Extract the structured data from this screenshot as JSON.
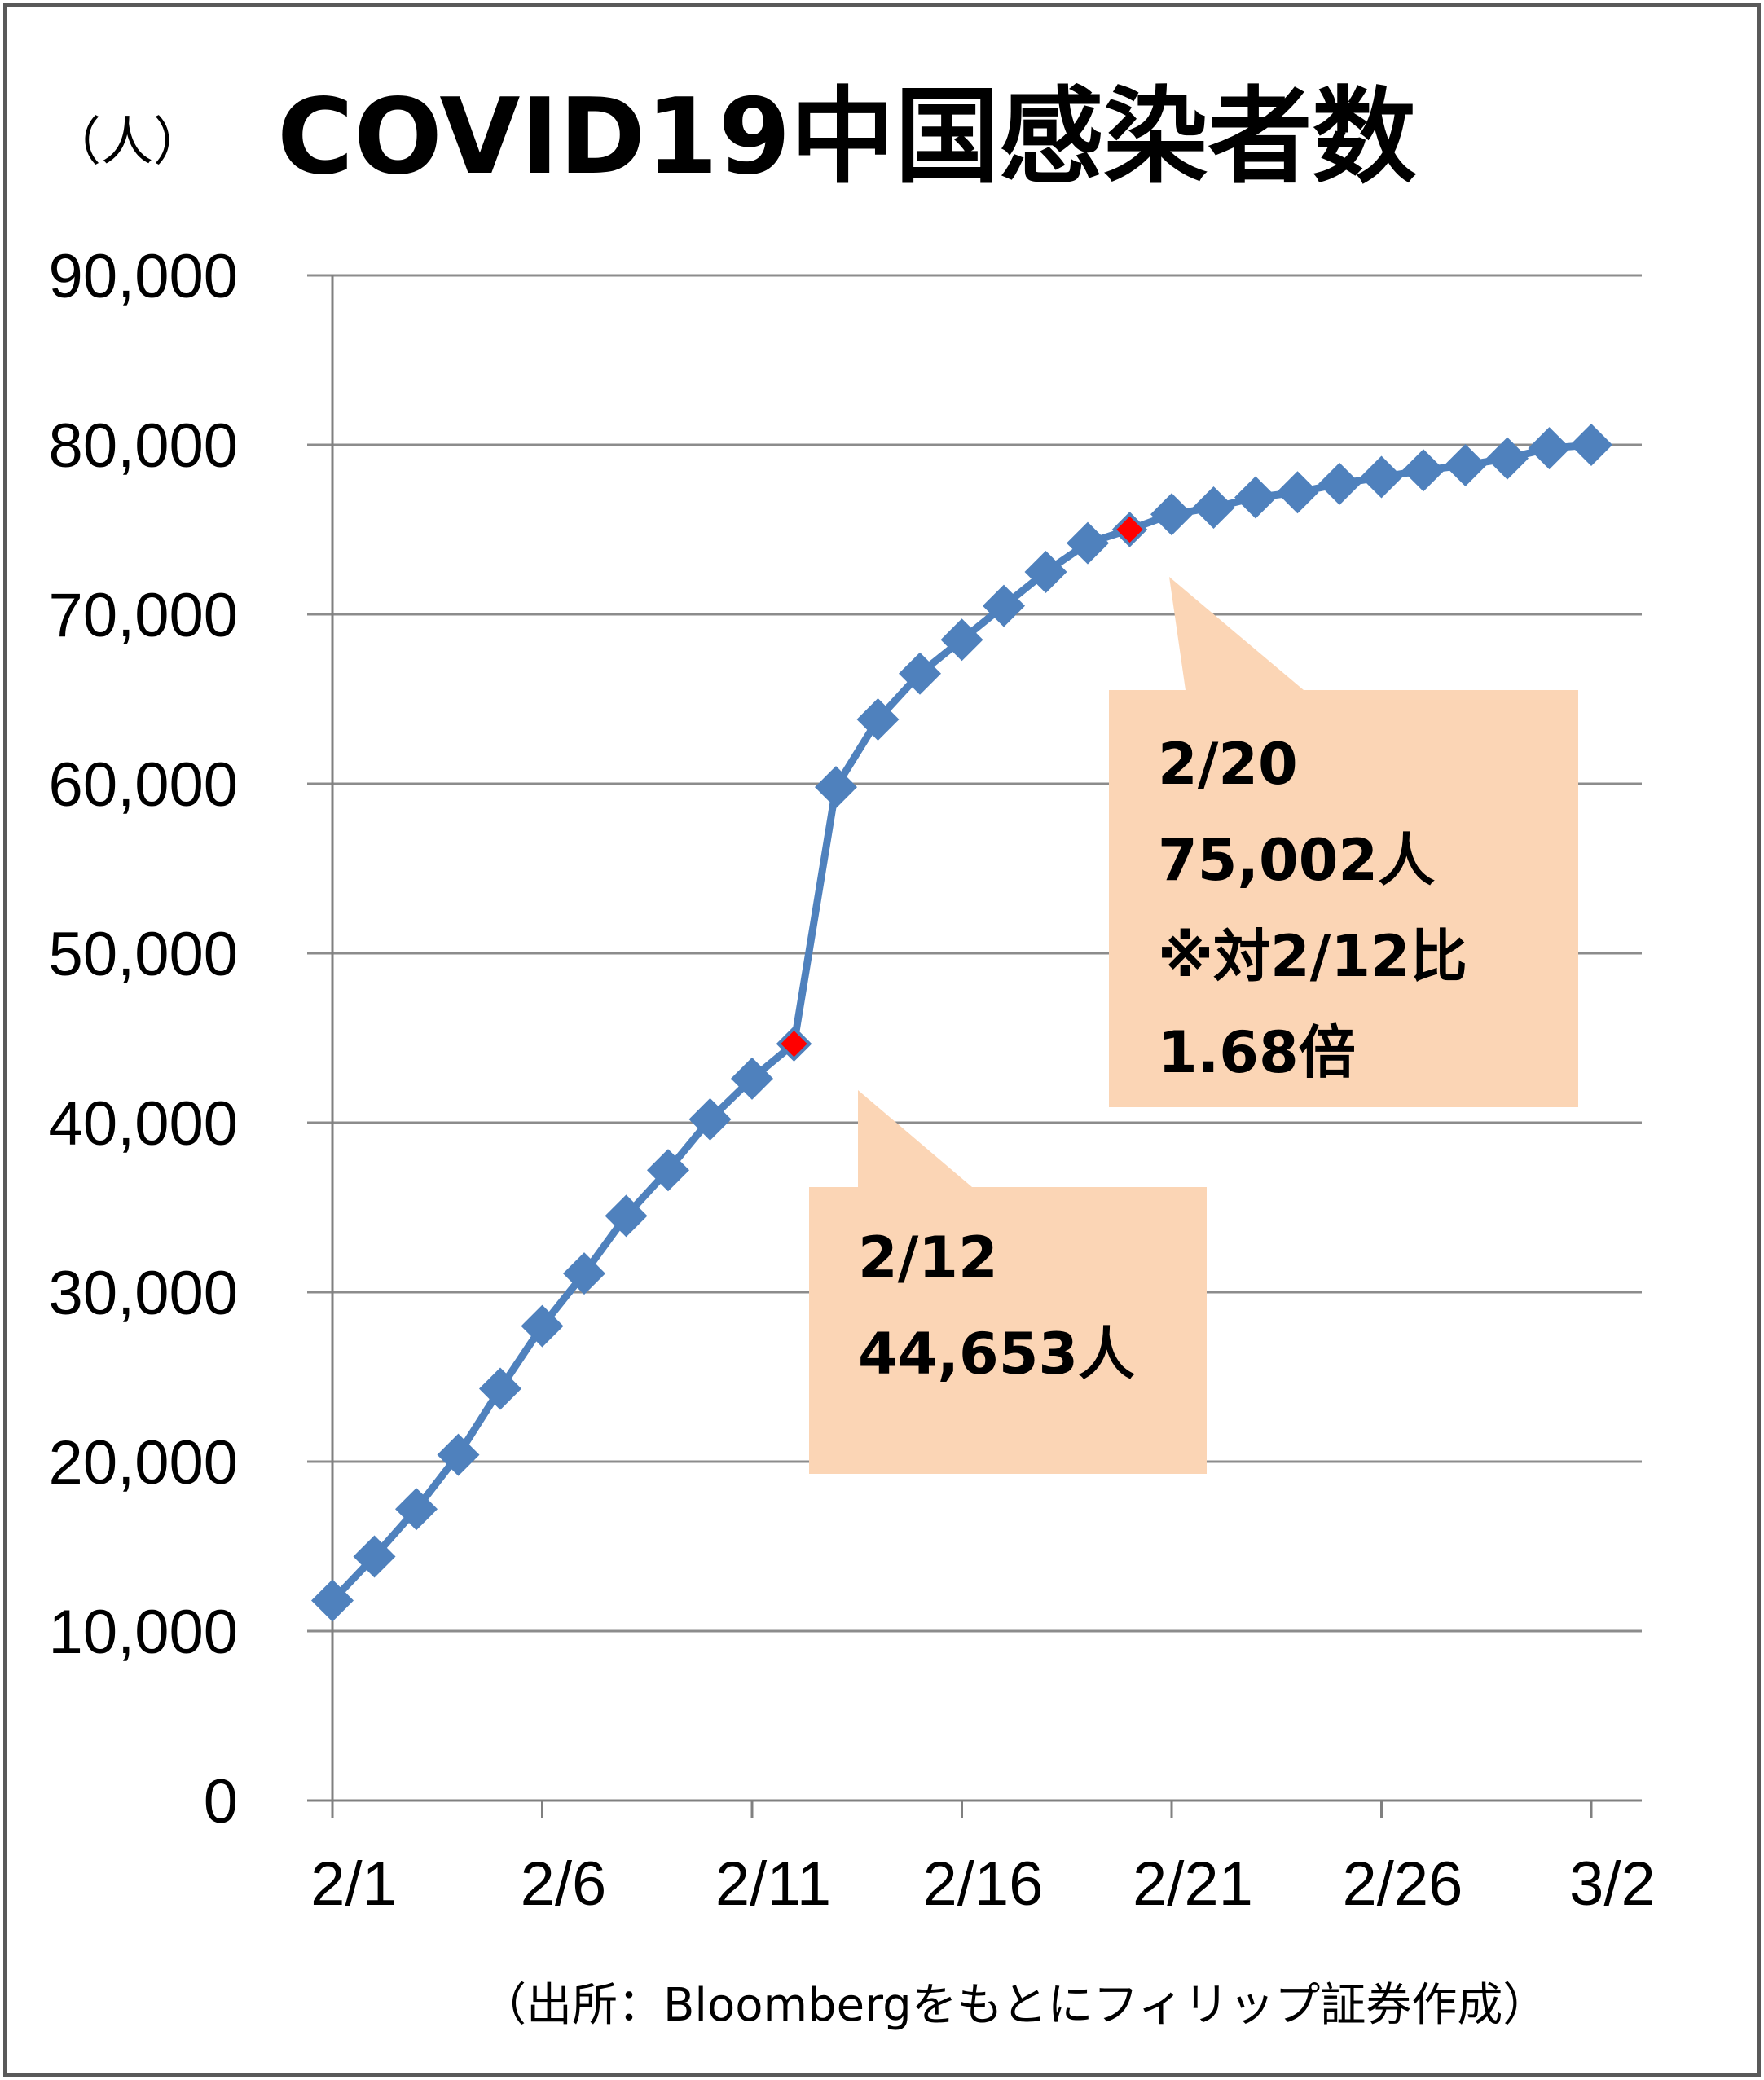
{
  "unit_label": "（人）",
  "colors": {
    "series": "#4F81BD",
    "highlight": "#FF0000",
    "callout_fill": "#FBD5B5",
    "grid": "#8C8C8C",
    "axis": "#808080"
  },
  "source_note": "（出所：Bloombergをもとにフィリップ証券作成）",
  "chart_data": {
    "type": "line",
    "title": "COVID19中国感染者数",
    "xlabel": "",
    "ylabel": "",
    "ylim": [
      0,
      90000
    ],
    "y_ticks": [
      "0",
      "10,000",
      "20,000",
      "30,000",
      "40,000",
      "50,000",
      "60,000",
      "70,000",
      "80,000",
      "90,000"
    ],
    "x_ticks": [
      "2/1",
      "2/6",
      "2/11",
      "2/16",
      "2/21",
      "2/26",
      "3/2"
    ],
    "x": [
      "2/1",
      "2/2",
      "2/3",
      "2/4",
      "2/5",
      "2/6",
      "2/7",
      "2/8",
      "2/9",
      "2/10",
      "2/11",
      "2/12",
      "2/13",
      "2/14",
      "2/15",
      "2/16",
      "2/17",
      "2/18",
      "2/19",
      "2/20",
      "2/21",
      "2/22",
      "2/23",
      "2/24",
      "2/25",
      "2/26",
      "2/27",
      "2/28",
      "2/29",
      "3/1",
      "3/2"
    ],
    "series": [
      {
        "values": [
          11800,
          14400,
          17200,
          20400,
          24300,
          28000,
          31100,
          34500,
          37200,
          40200,
          42600,
          44653,
          59800,
          63800,
          66500,
          68500,
          70500,
          72500,
          74200,
          75002,
          75900,
          76300,
          76900,
          77200,
          77700,
          78100,
          78500,
          78800,
          79200,
          79800,
          80000
        ]
      }
    ],
    "highlights": [
      "2/12",
      "2/20"
    ],
    "callouts": [
      {
        "target": "2/12",
        "lines": [
          "2/12",
          "44,653人"
        ]
      },
      {
        "target": "2/20",
        "lines": [
          "2/20",
          "75,002人",
          "※対2/12比",
          "1.68倍"
        ]
      }
    ],
    "grid": true,
    "legend": "none"
  }
}
